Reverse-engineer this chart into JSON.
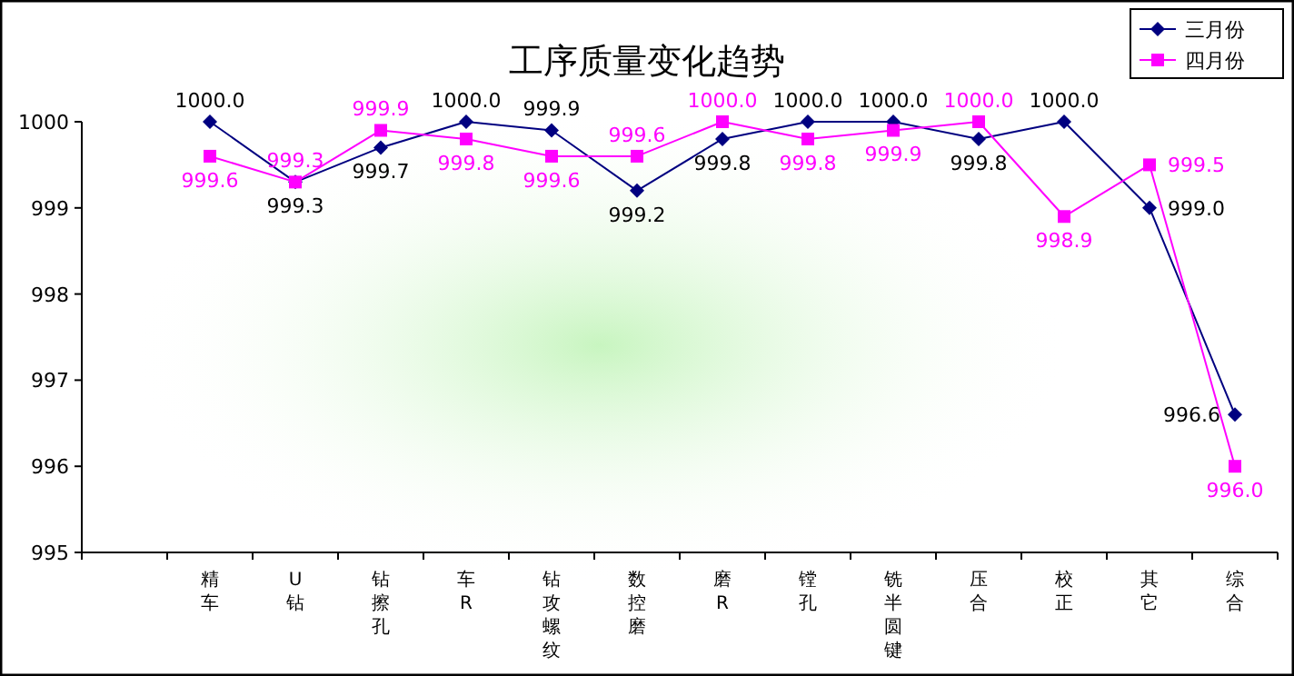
{
  "chart_data": {
    "type": "line",
    "title": "工序质量变化趋势",
    "categories": [
      null,
      "精车",
      "U钻",
      "钻擦孔",
      "车R",
      "钻攻螺纹",
      "数控磨",
      "磨R",
      "镗孔",
      "铣半圆键",
      "压合",
      "校正",
      "其它",
      "综合"
    ],
    "series": [
      {
        "name": "三月份",
        "color": "#000080",
        "marker": "diamond",
        "values": [
          null,
          1000.0,
          999.3,
          999.7,
          1000.0,
          999.9,
          999.2,
          999.8,
          1000.0,
          1000.0,
          999.8,
          1000.0,
          999.0,
          996.6
        ],
        "value_labels": [
          null,
          "1000.0",
          "999.3",
          "999.7",
          "1000.0",
          "999.9",
          "999.2",
          "999.8",
          "1000.0",
          "1000.0",
          "999.8",
          "1000.0",
          "999.0",
          "996.6"
        ]
      },
      {
        "name": "四月份",
        "color": "#ff00ff",
        "marker": "square",
        "values": [
          null,
          999.6,
          999.3,
          999.9,
          999.8,
          999.6,
          999.6,
          1000.0,
          999.8,
          999.9,
          1000.0,
          998.9,
          999.5,
          996.0
        ],
        "value_labels": [
          null,
          "999.6",
          "999.3",
          "999.9",
          "999.8",
          "999.6",
          "999.6",
          "1000.0",
          "999.8",
          "999.9",
          "1000.0",
          "998.9",
          "999.5",
          "996.0"
        ]
      }
    ],
    "ylim": [
      995,
      1000
    ],
    "yticks": [
      995,
      996,
      997,
      998,
      999,
      1000
    ],
    "grid": false,
    "legend": "top right"
  }
}
